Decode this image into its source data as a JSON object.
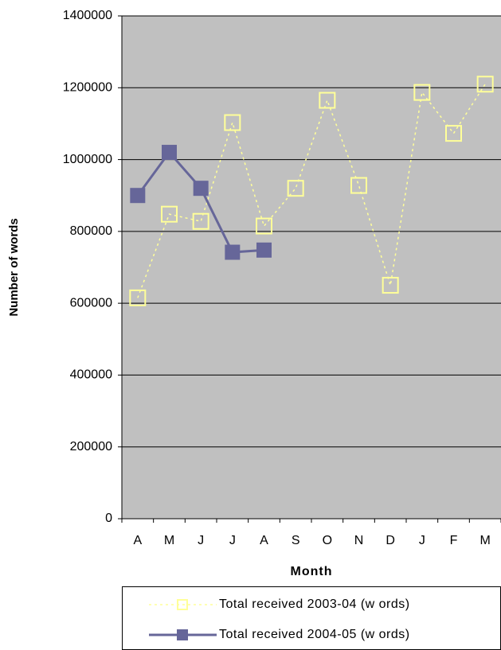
{
  "chart_data": {
    "type": "line",
    "categories": [
      "A",
      "M",
      "J",
      "J",
      "A",
      "S",
      "O",
      "N",
      "D",
      "J",
      "F",
      "M"
    ],
    "series": [
      {
        "name": "Total received 2003-04 (w ords)",
        "color": "#ffff99",
        "dashed": true,
        "marker": "open-square",
        "values": [
          615000,
          848000,
          828000,
          1103000,
          815000,
          920000,
          1165000,
          928000,
          650000,
          1187000,
          1073000,
          1210000
        ]
      },
      {
        "name": "Total received 2004-05 (w ords)",
        "color": "#666699",
        "dashed": false,
        "marker": "filled-square",
        "values": [
          900000,
          1020000,
          920000,
          742000,
          748000,
          null,
          null,
          null,
          null,
          null,
          null,
          null
        ]
      }
    ],
    "xlabel": "Month",
    "ylabel": "Number of words",
    "ylim": [
      0,
      1400000
    ],
    "yticks": [
      0,
      200000,
      400000,
      600000,
      800000,
      1000000,
      1200000,
      1400000
    ],
    "grid": true,
    "legend": "bottom"
  }
}
